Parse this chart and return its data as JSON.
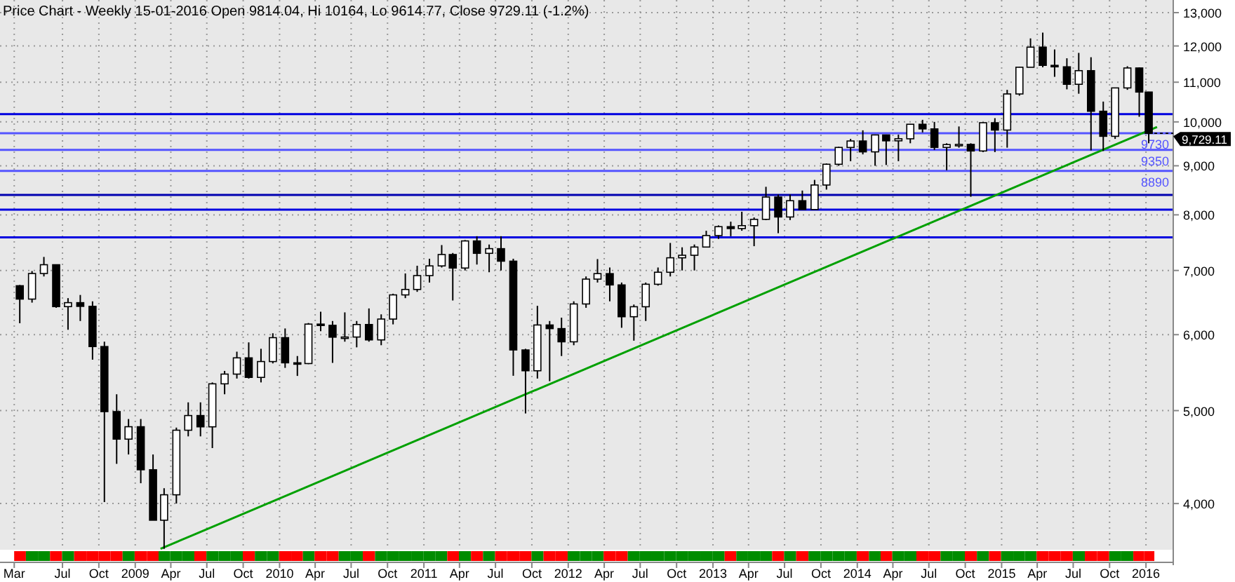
{
  "chart_data": {
    "type": "candlestick",
    "title": "Price Chart - Weekly 15-01-2016 Open 9814.04, Hi 10164, Lo 9614.77, Close 9729.11 (-1.2%)",
    "x": [
      "2008-03-15",
      "2008-04-15",
      "2008-05-15",
      "2008-06-15",
      "2008-07-15",
      "2008-08-15",
      "2008-09-15",
      "2008-10-15",
      "2008-11-15",
      "2008-12-15",
      "2009-01-15",
      "2009-02-15",
      "2009-03-15",
      "2009-04-15",
      "2009-05-15",
      "2009-06-15",
      "2009-07-15",
      "2009-08-15",
      "2009-09-15",
      "2009-10-15",
      "2009-11-15",
      "2009-12-15",
      "2010-01-15",
      "2010-02-15",
      "2010-03-15",
      "2010-04-15",
      "2010-05-15",
      "2010-06-15",
      "2010-07-15",
      "2010-08-15",
      "2010-09-15",
      "2010-10-15",
      "2010-11-15",
      "2010-12-15",
      "2011-01-15",
      "2011-02-15",
      "2011-03-15",
      "2011-04-15",
      "2011-05-15",
      "2011-06-15",
      "2011-07-15",
      "2011-08-15",
      "2011-09-15",
      "2011-10-15",
      "2011-11-15",
      "2011-12-15",
      "2012-01-15",
      "2012-02-15",
      "2012-03-15",
      "2012-04-15",
      "2012-05-15",
      "2012-06-15",
      "2012-07-15",
      "2012-08-15",
      "2012-09-15",
      "2012-10-15",
      "2012-11-15",
      "2012-12-15",
      "2013-01-15",
      "2013-02-15",
      "2013-03-15",
      "2013-04-15",
      "2013-05-15",
      "2013-06-15",
      "2013-07-15",
      "2013-08-15",
      "2013-09-15",
      "2013-10-15",
      "2013-11-15",
      "2013-12-15",
      "2014-01-15",
      "2014-02-15",
      "2014-03-15",
      "2014-04-15",
      "2014-05-15",
      "2014-06-15",
      "2014-07-15",
      "2014-08-15",
      "2014-09-15",
      "2014-10-15",
      "2014-11-15",
      "2014-12-15",
      "2015-01-15",
      "2015-02-15",
      "2015-03-15",
      "2015-04-15",
      "2015-05-15",
      "2015-06-15",
      "2015-07-15",
      "2015-08-15",
      "2015-09-15",
      "2015-10-15",
      "2015-11-15",
      "2015-12-15",
      "2016-01-08"
    ],
    "ohlc": [
      [
        6748,
        6760,
        6167,
        6535
      ],
      [
        6535,
        6990,
        6480,
        6949
      ],
      [
        6949,
        7231,
        6900,
        7097
      ],
      [
        7097,
        7100,
        6400,
        6418
      ],
      [
        6418,
        6550,
        6071,
        6479
      ],
      [
        6479,
        6600,
        6200,
        6422
      ],
      [
        6422,
        6500,
        5650,
        5831
      ],
      [
        5831,
        5900,
        4014,
        4988
      ],
      [
        4988,
        5200,
        4400,
        4669
      ],
      [
        4669,
        4900,
        4500,
        4810
      ],
      [
        4810,
        4900,
        4200,
        4338
      ],
      [
        4338,
        4500,
        3843,
        3843
      ],
      [
        3843,
        4150,
        3588,
        4085
      ],
      [
        4085,
        4800,
        4000,
        4770
      ],
      [
        4770,
        5100,
        4700,
        4941
      ],
      [
        4941,
        5100,
        4700,
        4809
      ],
      [
        4809,
        5350,
        4570,
        5332
      ],
      [
        5332,
        5500,
        5200,
        5458
      ],
      [
        5458,
        5760,
        5400,
        5675
      ],
      [
        5675,
        5890,
        5400,
        5415
      ],
      [
        5415,
        5800,
        5350,
        5625
      ],
      [
        5625,
        6020,
        5600,
        5957
      ],
      [
        5957,
        6090,
        5540,
        5608
      ],
      [
        5608,
        5700,
        5434,
        5598
      ],
      [
        5598,
        6170,
        5590,
        6154
      ],
      [
        6154,
        6340,
        6050,
        6136
      ],
      [
        6136,
        6200,
        5607,
        5964
      ],
      [
        5964,
        6330,
        5900,
        5966
      ],
      [
        5966,
        6200,
        5820,
        6148
      ],
      [
        6148,
        6390,
        5900,
        5925
      ],
      [
        5925,
        6300,
        5850,
        6229
      ],
      [
        6229,
        6620,
        6150,
        6601
      ],
      [
        6601,
        6950,
        6550,
        6688
      ],
      [
        6688,
        7080,
        6650,
        6914
      ],
      [
        6914,
        7200,
        6800,
        7077
      ],
      [
        7077,
        7440,
        7050,
        7273
      ],
      [
        7273,
        7300,
        6513,
        7041
      ],
      [
        7041,
        7530,
        7000,
        7514
      ],
      [
        7514,
        7600,
        7100,
        7294
      ],
      [
        7294,
        7450,
        6970,
        7376
      ],
      [
        7376,
        7600,
        7000,
        7158
      ],
      [
        7158,
        7200,
        5436,
        5784
      ],
      [
        5784,
        5800,
        4966,
        5502
      ],
      [
        5502,
        6430,
        5400,
        6141
      ],
      [
        6141,
        6200,
        5366,
        6088
      ],
      [
        6088,
        6250,
        5700,
        5898
      ],
      [
        5898,
        6500,
        5850,
        6459
      ],
      [
        6459,
        6900,
        6400,
        6856
      ],
      [
        6856,
        7194,
        6800,
        6947
      ],
      [
        6947,
        7050,
        6500,
        6761
      ],
      [
        6761,
        6800,
        6100,
        6264
      ],
      [
        6264,
        6450,
        5914,
        6416
      ],
      [
        6416,
        6800,
        6200,
        6772
      ],
      [
        6772,
        7050,
        6750,
        6970
      ],
      [
        6970,
        7478,
        6900,
        7216
      ],
      [
        7216,
        7400,
        7000,
        7260
      ],
      [
        7260,
        7450,
        7000,
        7405
      ],
      [
        7405,
        7700,
        7400,
        7612
      ],
      [
        7612,
        7800,
        7550,
        7776
      ],
      [
        7776,
        7870,
        7600,
        7741
      ],
      [
        7741,
        8060,
        7700,
        7795
      ],
      [
        7795,
        7950,
        7420,
        7914
      ],
      [
        7914,
        8557,
        7900,
        8349
      ],
      [
        8349,
        8400,
        7655,
        7959
      ],
      [
        7959,
        8400,
        7900,
        8276
      ],
      [
        8276,
        8480,
        8100,
        8103
      ],
      [
        8103,
        8700,
        8100,
        8594
      ],
      [
        8594,
        9050,
        8500,
        9033
      ],
      [
        9033,
        9420,
        9000,
        9405
      ],
      [
        9405,
        9600,
        9100,
        9552
      ],
      [
        9552,
        9800,
        9250,
        9306
      ],
      [
        9306,
        9700,
        9000,
        9692
      ],
      [
        9692,
        9700,
        9017,
        9556
      ],
      [
        9556,
        9700,
        9100,
        9603
      ],
      [
        9603,
        9950,
        9500,
        9943
      ],
      [
        9943,
        10050,
        9750,
        9833
      ],
      [
        9833,
        10000,
        9350,
        9407
      ],
      [
        9407,
        9500,
        8903,
        9470
      ],
      [
        9470,
        9891,
        9400,
        9474
      ],
      [
        9474,
        9500,
        8355,
        9326
      ],
      [
        9326,
        9990,
        9300,
        9980
      ],
      [
        9980,
        10090,
        9300,
        9806
      ],
      [
        9806,
        10800,
        9400,
        10694
      ],
      [
        10694,
        11420,
        10650,
        11402
      ],
      [
        11402,
        12220,
        11400,
        11966
      ],
      [
        11966,
        12391,
        11400,
        11454
      ],
      [
        11454,
        11900,
        11143,
        11414
      ],
      [
        11414,
        11650,
        10813,
        10945
      ],
      [
        10945,
        11802,
        10700,
        11309
      ],
      [
        11309,
        11680,
        9338,
        10259
      ],
      [
        10259,
        10500,
        9325,
        9660
      ],
      [
        9660,
        10850,
        9600,
        10850
      ],
      [
        10850,
        11430,
        10800,
        11382
      ],
      [
        11382,
        11400,
        10124,
        10743
      ],
      [
        10743,
        10750,
        9500,
        9729.11
      ]
    ],
    "series": [
      {
        "type": "line",
        "color": "#00a000",
        "x": [
          "2009-03-06",
          "2016-01-29"
        ],
        "values": [
          3588,
          9880
        ]
      }
    ],
    "xlim": [
      "2008-01-25",
      "2016-03-10"
    ],
    "xticks": [
      {
        "value": "2008-03-01",
        "label": "Mar"
      },
      {
        "value": "2008-07-01",
        "label": "Jul"
      },
      {
        "value": "2008-10-01",
        "label": "Oct"
      },
      {
        "value": "2009-01-01",
        "label": "2009"
      },
      {
        "value": "2009-04-01",
        "label": "Apr"
      },
      {
        "value": "2009-07-01",
        "label": "Jul"
      },
      {
        "value": "2009-10-01",
        "label": "Oct"
      },
      {
        "value": "2010-01-01",
        "label": "2010"
      },
      {
        "value": "2010-04-01",
        "label": "Apr"
      },
      {
        "value": "2010-07-01",
        "label": "Jul"
      },
      {
        "value": "2010-10-01",
        "label": "Oct"
      },
      {
        "value": "2011-01-01",
        "label": "2011"
      },
      {
        "value": "2011-04-01",
        "label": "Apr"
      },
      {
        "value": "2011-07-01",
        "label": "Jul"
      },
      {
        "value": "2011-10-01",
        "label": "Oct"
      },
      {
        "value": "2012-01-01",
        "label": "2012"
      },
      {
        "value": "2012-04-01",
        "label": "Apr"
      },
      {
        "value": "2012-07-01",
        "label": "Jul"
      },
      {
        "value": "2012-10-01",
        "label": "Oct"
      },
      {
        "value": "2013-01-01",
        "label": "2013"
      },
      {
        "value": "2013-04-01",
        "label": "Apr"
      },
      {
        "value": "2013-07-01",
        "label": "Jul"
      },
      {
        "value": "2013-10-01",
        "label": "Oct"
      },
      {
        "value": "2014-01-01",
        "label": "2014"
      },
      {
        "value": "2014-04-01",
        "label": "Apr"
      },
      {
        "value": "2014-07-01",
        "label": "Jul"
      },
      {
        "value": "2014-10-01",
        "label": "Oct"
      },
      {
        "value": "2015-01-01",
        "label": "2015"
      },
      {
        "value": "2015-04-01",
        "label": "Apr"
      },
      {
        "value": "2015-07-01",
        "label": "Jul"
      },
      {
        "value": "2015-10-01",
        "label": "Oct"
      },
      {
        "value": "2016-01-01",
        "label": "2016"
      }
    ],
    "ylim": [
      3580,
      13400
    ],
    "log": true,
    "yticks": [
      {
        "value": 4000,
        "label": "4,000"
      },
      {
        "value": 5000,
        "label": "5,000"
      },
      {
        "value": 6000,
        "label": "6,000"
      },
      {
        "value": 7000,
        "label": "7,000"
      },
      {
        "value": 8000,
        "label": "8,000"
      },
      {
        "value": 9000,
        "label": "9,000"
      },
      {
        "value": 10000,
        "label": "10,000"
      },
      {
        "value": 11000,
        "label": "11,000"
      },
      {
        "value": 12000,
        "label": "12,000"
      },
      {
        "value": 13000,
        "label": "13,000"
      }
    ],
    "grid": true,
    "ref_lines": [
      {
        "axis": "y",
        "value": 10190,
        "color": "#0000e0"
      },
      {
        "axis": "y",
        "value": 9730,
        "label": "9730",
        "color": "#5555ff"
      },
      {
        "axis": "y",
        "value": 9350,
        "label": "9350",
        "color": "#5555ff"
      },
      {
        "axis": "y",
        "value": 8890,
        "label": "8890",
        "color": "#5555ff"
      },
      {
        "axis": "y",
        "value": 8390,
        "color": "#0000b0"
      },
      {
        "axis": "y",
        "value": 8100,
        "color": "#0000e0"
      },
      {
        "axis": "y",
        "value": 7580,
        "color": "#0000e0"
      }
    ],
    "annotations": [
      {
        "text": "9,729.11",
        "x": "2016-01-08",
        "y": 9729.11
      }
    ]
  }
}
